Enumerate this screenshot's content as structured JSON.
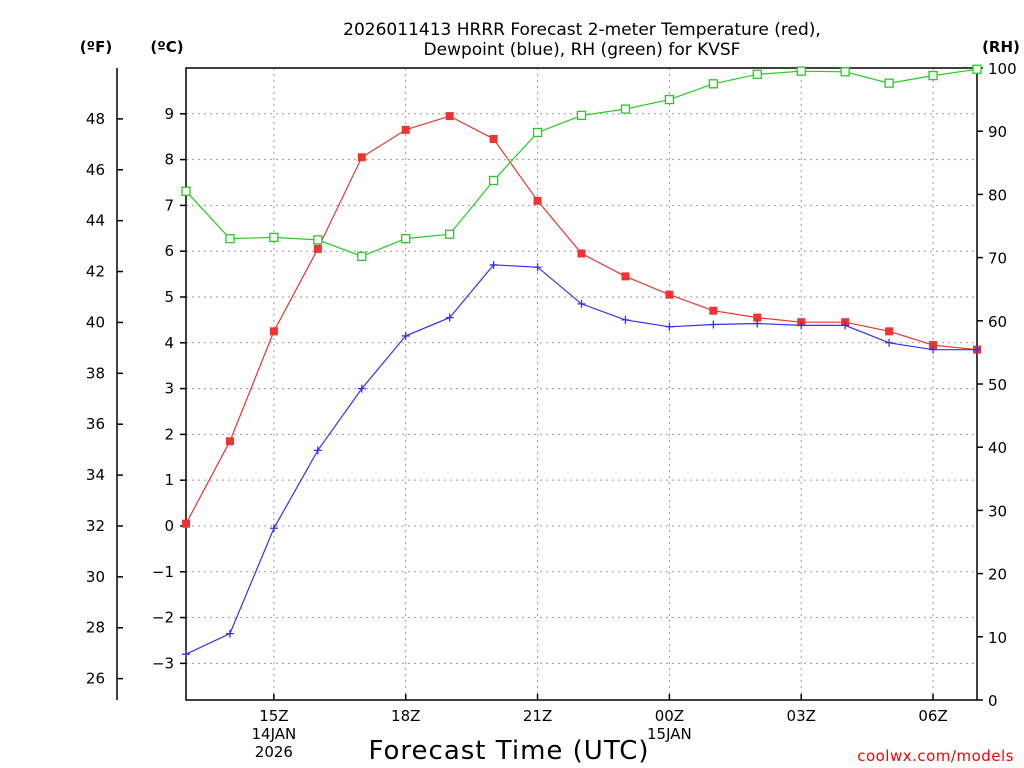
{
  "chart_data": {
    "type": "line",
    "title": [
      "2026011413 HRRR Forecast 2-meter Temperature (red),",
      "Dewpoint (blue), RH (green) for KVSF"
    ],
    "xlabel": "Forecast Time (UTC)",
    "credit": "coolwx.com/models",
    "units": {
      "fahrenheit": "(ºF)",
      "celsius": "(ºC)",
      "rh": "(RH)"
    },
    "x_hours": [
      13,
      14,
      15,
      16,
      17,
      18,
      19,
      20,
      21,
      22,
      23,
      24,
      25,
      26,
      27,
      28,
      29,
      30,
      31
    ],
    "x_range": [
      13,
      31
    ],
    "x_ticks": [
      {
        "hour": 15,
        "lines": [
          "15Z",
          "14JAN",
          "2026"
        ]
      },
      {
        "hour": 18,
        "lines": [
          "18Z"
        ]
      },
      {
        "hour": 21,
        "lines": [
          "21Z"
        ]
      },
      {
        "hour": 24,
        "lines": [
          "00Z",
          "15JAN"
        ]
      },
      {
        "hour": 27,
        "lines": [
          "03Z"
        ]
      },
      {
        "hour": 30,
        "lines": [
          "06Z"
        ]
      }
    ],
    "celsius_axis": {
      "range": [
        -3.8,
        10.0
      ],
      "ticks": [
        -3,
        -2,
        -1,
        0,
        1,
        2,
        3,
        4,
        5,
        6,
        7,
        8,
        9
      ]
    },
    "fahrenheit_axis": {
      "ticks": [
        26,
        28,
        30,
        32,
        34,
        36,
        38,
        40,
        42,
        44,
        46,
        48
      ]
    },
    "rh_axis": {
      "range": [
        0,
        100
      ],
      "ticks": [
        0,
        10,
        20,
        30,
        40,
        50,
        60,
        70,
        80,
        90,
        100
      ]
    },
    "series": [
      {
        "name": "Temperature",
        "axis": "celsius",
        "color": "#ee3333",
        "marker": "filled-square",
        "values": [
          0.05,
          1.85,
          4.25,
          6.05,
          8.05,
          8.65,
          8.95,
          8.45,
          7.1,
          5.95,
          5.45,
          5.05,
          4.7,
          4.55,
          4.45,
          4.45,
          4.25,
          3.95,
          3.85
        ]
      },
      {
        "name": "Dewpoint",
        "axis": "celsius",
        "color": "#3333ee",
        "marker": "plus",
        "values": [
          -2.8,
          -2.35,
          -0.05,
          1.65,
          3.0,
          4.15,
          4.55,
          5.7,
          5.65,
          4.85,
          4.5,
          4.35,
          4.4,
          4.42,
          4.38,
          4.38,
          4.0,
          3.85,
          3.85
        ]
      },
      {
        "name": "RH",
        "axis": "rh",
        "color": "#22cc22",
        "marker": "open-square",
        "values": [
          80.5,
          73.0,
          73.2,
          72.8,
          70.2,
          73.0,
          73.7,
          82.2,
          89.8,
          92.5,
          93.5,
          95.0,
          97.5,
          99.0,
          99.5,
          99.4,
          97.6,
          98.8,
          99.8
        ]
      }
    ]
  }
}
